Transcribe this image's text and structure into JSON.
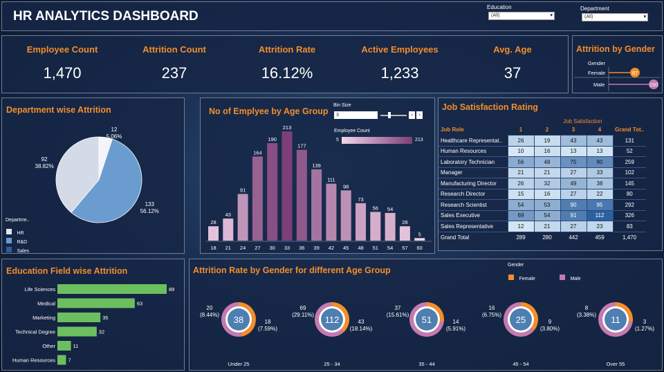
{
  "header": {
    "title": "HR ANALYTICS DASHBOARD"
  },
  "filters": {
    "education": {
      "label": "Education",
      "value": "(All)"
    },
    "department": {
      "label": "Department",
      "value": "(All)"
    }
  },
  "kpis": [
    {
      "label": "Employee Count",
      "value": "1,470"
    },
    {
      "label": "Attrition Count",
      "value": "237"
    },
    {
      "label": "Attrition Rate",
      "value": "16.12%"
    },
    {
      "label": "Active Employees",
      "value": "1,233"
    },
    {
      "label": "Avg. Age",
      "value": "37"
    }
  ],
  "gender_attrition": {
    "title": "Attrition by Gender",
    "header": "Gender",
    "rows": [
      {
        "label": "Female",
        "value": 87,
        "color": "#f28e2b"
      },
      {
        "label": "Male",
        "value": 150,
        "color": "#c47ab0"
      }
    ]
  },
  "department": {
    "title": "Department wise Attrition",
    "legend_title": "Departme..",
    "legend": [
      {
        "label": "HR",
        "color": "#dfe6ef"
      },
      {
        "label": "R&D",
        "color": "#6d9bcd"
      },
      {
        "label": "Sales",
        "color": "#2f5f95"
      }
    ],
    "slices": [
      {
        "name": "HR",
        "value": 12,
        "pct": "5.06%",
        "color": "#f2f4f8"
      },
      {
        "name": "R&D",
        "value": 133,
        "pct": "56.12%",
        "color": "#6b9ccf"
      },
      {
        "name": "Sales",
        "value": 92,
        "pct": "38.82%",
        "color": "#d4dbe6"
      }
    ]
  },
  "age_chart": {
    "title": "No of Emplyee by Age Group",
    "bin_label": "Bin Size",
    "bin_value": "3",
    "emp_label": "Employee Count",
    "emp_min": "5",
    "emp_max": "213"
  },
  "job_sat": {
    "title": "Job Satisfaction Rating",
    "group_header": "Job Satisfaction",
    "role_header": "Job Role",
    "cols": [
      "1",
      "2",
      "3",
      "4"
    ],
    "total_header": "Grand Tot..",
    "rows": [
      {
        "role": "Healthcare Representat..",
        "v": [
          26,
          19,
          43,
          43
        ],
        "total": "131"
      },
      {
        "role": "Human Resources",
        "v": [
          10,
          16,
          13,
          13
        ],
        "total": "52"
      },
      {
        "role": "Laboratory Technician",
        "v": [
          56,
          48,
          75,
          80
        ],
        "total": "259"
      },
      {
        "role": "Manager",
        "v": [
          21,
          21,
          27,
          33
        ],
        "total": "102"
      },
      {
        "role": "Manufacturing Director",
        "v": [
          26,
          32,
          49,
          38
        ],
        "total": "145"
      },
      {
        "role": "Research Director",
        "v": [
          15,
          16,
          27,
          22
        ],
        "total": "80"
      },
      {
        "role": "Research Scientist",
        "v": [
          54,
          53,
          90,
          95
        ],
        "total": "292"
      },
      {
        "role": "Sales Executive",
        "v": [
          69,
          54,
          91,
          112
        ],
        "total": "326"
      },
      {
        "role": "Sales Representative",
        "v": [
          12,
          21,
          27,
          23
        ],
        "total": "83"
      }
    ],
    "grand": {
      "label": "Grand Total",
      "v": [
        "289",
        "280",
        "442",
        "459"
      ],
      "total": "1,470"
    }
  },
  "education": {
    "title": "Education Field wise Attrition",
    "bar_color": "#6cbf5e"
  },
  "gender_age": {
    "title": "Attrition Rate by Gender for different Age Group",
    "legend_title": "Gender",
    "legend": [
      {
        "label": "Female",
        "color": "#f28e2b"
      },
      {
        "label": "Male",
        "color": "#c47ab0"
      }
    ],
    "groups": [
      {
        "label": "Under 25",
        "total": "38",
        "male": "20",
        "male_pct": "(8.44%)",
        "female": "18",
        "female_pct": "(7.59%)"
      },
      {
        "label": "25 - 34",
        "total": "112",
        "male": "69",
        "male_pct": "(29.11%)",
        "female": "43",
        "female_pct": "(18.14%)"
      },
      {
        "label": "35 - 44",
        "total": "51",
        "male": "37",
        "male_pct": "(15.61%)",
        "female": "14",
        "female_pct": "(5.91%)"
      },
      {
        "label": "45 - 54",
        "total": "25",
        "male": "16",
        "male_pct": "(6.75%)",
        "female": "9",
        "female_pct": "(3.80%)"
      },
      {
        "label": "Over 55",
        "total": "11",
        "male": "8",
        "male_pct": "(3.38%)",
        "female": "3",
        "female_pct": "(1.27%)"
      }
    ]
  },
  "chart_data": [
    {
      "type": "pie",
      "title": "Department wise Attrition",
      "categories": [
        "HR",
        "R&D",
        "Sales"
      ],
      "values": [
        12,
        133,
        92
      ]
    },
    {
      "type": "bar",
      "title": "No of Emplyee by Age Group",
      "categories": [
        "18",
        "21",
        "24",
        "27",
        "30",
        "33",
        "36",
        "39",
        "42",
        "45",
        "48",
        "51",
        "54",
        "57",
        "60"
      ],
      "values": [
        28,
        43,
        91,
        164,
        190,
        213,
        177,
        139,
        111,
        98,
        73,
        56,
        54,
        28,
        5
      ],
      "ylim": [
        0,
        213
      ]
    },
    {
      "type": "bar",
      "orientation": "horizontal",
      "title": "Education Field wise Attrition",
      "categories": [
        "Life Sciences",
        "Medical",
        "Marketing",
        "Technical Degree",
        "Other",
        "Human Resources"
      ],
      "values": [
        89,
        63,
        35,
        32,
        11,
        7
      ],
      "xlim": [
        0,
        89
      ]
    },
    {
      "type": "pie",
      "title": "Attrition Rate by Gender for different Age Group",
      "categories": [
        "Under 25",
        "25 - 34",
        "35 - 44",
        "45 - 54",
        "Over 55"
      ],
      "series": [
        {
          "name": "Female",
          "values": [
            18,
            43,
            14,
            9,
            3
          ]
        },
        {
          "name": "Male",
          "values": [
            20,
            69,
            37,
            16,
            8
          ]
        }
      ]
    }
  ]
}
